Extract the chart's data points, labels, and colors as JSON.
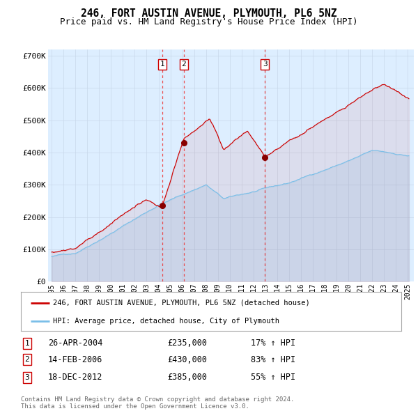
{
  "title": "246, FORT AUSTIN AVENUE, PLYMOUTH, PL6 5NZ",
  "subtitle": "Price paid vs. HM Land Registry's House Price Index (HPI)",
  "legend_line1": "246, FORT AUSTIN AVENUE, PLYMOUTH, PL6 5NZ (detached house)",
  "legend_line2": "HPI: Average price, detached house, City of Plymouth",
  "footer": "Contains HM Land Registry data © Crown copyright and database right 2024.\nThis data is licensed under the Open Government Licence v3.0.",
  "sales": [
    {
      "label": "1",
      "date": "26-APR-2004",
      "x_year": 2004.32,
      "price": 235000,
      "pct": "17%",
      "dir": "↑"
    },
    {
      "label": "2",
      "date": "14-FEB-2006",
      "x_year": 2006.12,
      "price": 430000,
      "pct": "83%",
      "dir": "↑"
    },
    {
      "label": "3",
      "date": "18-DEC-2012",
      "x_year": 2012.96,
      "price": 385000,
      "pct": "55%",
      "dir": "↑"
    }
  ],
  "ylim": [
    0,
    720000
  ],
  "xlim_start": 1994.7,
  "xlim_end": 2025.5,
  "yticks": [
    0,
    100000,
    200000,
    300000,
    400000,
    500000,
    600000,
    700000
  ],
  "ytick_labels": [
    "£0",
    "£100K",
    "£200K",
    "£300K",
    "£400K",
    "£500K",
    "£600K",
    "£700K"
  ],
  "xticks": [
    1995,
    1996,
    1997,
    1998,
    1999,
    2000,
    2001,
    2002,
    2003,
    2004,
    2005,
    2006,
    2007,
    2008,
    2009,
    2010,
    2011,
    2012,
    2013,
    2014,
    2015,
    2016,
    2017,
    2018,
    2019,
    2020,
    2021,
    2022,
    2023,
    2024,
    2025
  ],
  "hpi_color": "#7bbfe8",
  "price_color": "#cc0000",
  "dashed_line_color": "#ee3333",
  "marker_color": "#880000",
  "grid_color": "#c8d8ea",
  "plot_bg": "#ddeeff",
  "fig_bg": "#ffffff"
}
